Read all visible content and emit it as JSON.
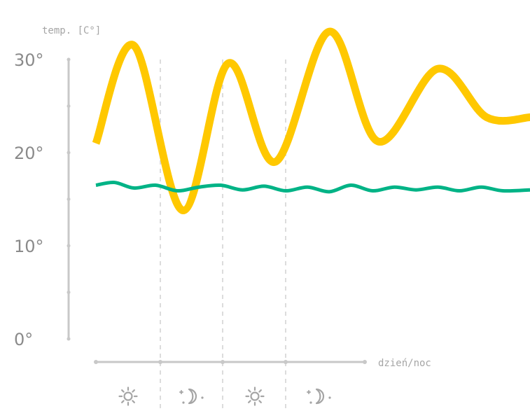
{
  "chart_data": {
    "type": "line",
    "ylabel": "temp. [C°]",
    "xlabel": "dzień/noc",
    "ylim": [
      0,
      30
    ],
    "y_ticks": [
      "0°",
      "10°",
      "20°",
      "30°"
    ],
    "x_categories": [
      "sun-icon",
      "moon-icon",
      "sun-icon",
      "moon-icon"
    ],
    "grid": "vertical dashed separators between day/night periods",
    "legend": "none",
    "series": [
      {
        "color": "#ffc800",
        "x": [
          0,
          0.35,
          0.8,
          1.22,
          1.65,
          2.15,
          2.6,
          3.15,
          3.6,
          4.0
        ],
        "values": [
          21,
          31.5,
          13.8,
          29.6,
          19,
          33,
          21.2,
          29,
          23.8,
          23.8
        ]
      },
      {
        "color": "#00b386",
        "x": [
          0,
          0.17,
          0.35,
          0.55,
          0.75,
          0.95,
          1.15,
          1.35,
          1.55,
          1.75,
          1.95,
          2.15,
          2.35,
          2.55,
          2.75,
          2.95,
          3.15,
          3.35,
          3.55,
          3.75,
          4.0
        ],
        "values": [
          16.5,
          16.8,
          16.2,
          16.5,
          15.9,
          16.3,
          16.5,
          16.0,
          16.4,
          15.9,
          16.3,
          15.8,
          16.5,
          15.9,
          16.3,
          16.0,
          16.3,
          15.9,
          16.3,
          15.9,
          16.0
        ]
      }
    ]
  }
}
